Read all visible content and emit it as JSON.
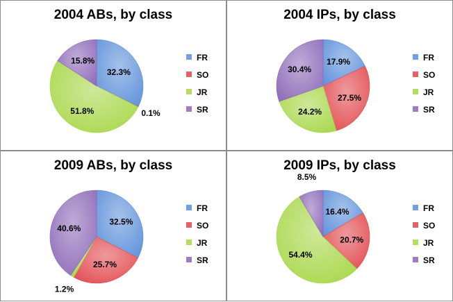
{
  "colors": {
    "FR": "#5b8fd9",
    "SO": "#e0474c",
    "JR": "#a6d645",
    "SR": "#8a67b6"
  },
  "chart_data": [
    {
      "type": "pie",
      "title": "2004 ABs, by class",
      "slices": [
        {
          "label": "FR",
          "value": 32.3
        },
        {
          "label": "SO",
          "value": 0.1
        },
        {
          "label": "JR",
          "value": 51.8
        },
        {
          "label": "SR",
          "value": 15.8
        }
      ],
      "legend": [
        "FR",
        "SO",
        "JR",
        "SR"
      ],
      "legend_position": "right"
    },
    {
      "type": "pie",
      "title": "2004 IPs, by class",
      "slices": [
        {
          "label": "FR",
          "value": 17.9
        },
        {
          "label": "SO",
          "value": 27.5
        },
        {
          "label": "JR",
          "value": 24.2
        },
        {
          "label": "SR",
          "value": 30.4
        }
      ],
      "legend": [
        "FR",
        "SO",
        "JR",
        "SR"
      ],
      "legend_position": "right"
    },
    {
      "type": "pie",
      "title": "2009 ABs, by class",
      "slices": [
        {
          "label": "FR",
          "value": 32.5
        },
        {
          "label": "SO",
          "value": 25.7
        },
        {
          "label": "JR",
          "value": 1.2
        },
        {
          "label": "SR",
          "value": 40.6
        }
      ],
      "legend": [
        "FR",
        "SO",
        "JR",
        "SR"
      ],
      "legend_position": "right"
    },
    {
      "type": "pie",
      "title": "2009 IPs, by class",
      "slices": [
        {
          "label": "FR",
          "value": 16.4
        },
        {
          "label": "SO",
          "value": 20.7
        },
        {
          "label": "JR",
          "value": 54.4
        },
        {
          "label": "SR",
          "value": 8.5
        }
      ],
      "legend": [
        "FR",
        "SO",
        "JR",
        "SR"
      ],
      "legend_position": "right"
    }
  ]
}
